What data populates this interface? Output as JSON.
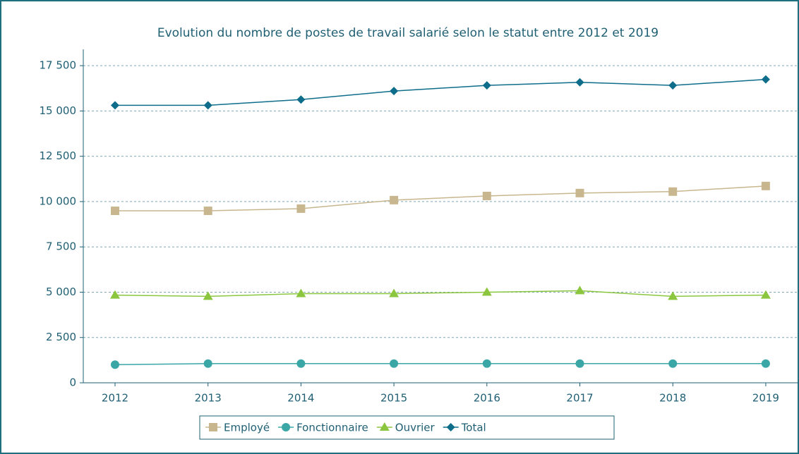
{
  "chart_data": {
    "type": "line",
    "title": "Evolution du nombre de postes de travail salarié selon le statut entre 2012 et 2019",
    "categories": [
      "2012",
      "2013",
      "2014",
      "2015",
      "2016",
      "2017",
      "2018",
      "2019"
    ],
    "series": [
      {
        "name": "Employé",
        "color": "#c8b68e",
        "marker": "square",
        "values": [
          9490,
          9490,
          9610,
          10080,
          10310,
          10470,
          10550,
          10860
        ]
      },
      {
        "name": "Fonctionnaire",
        "color": "#3aa6a6",
        "marker": "circle",
        "values": [
          1000,
          1060,
          1060,
          1060,
          1060,
          1060,
          1060,
          1060
        ]
      },
      {
        "name": "Ouvrier",
        "color": "#8cc63f",
        "marker": "triangle",
        "values": [
          4840,
          4770,
          4920,
          4920,
          5000,
          5080,
          4770,
          4840
        ]
      },
      {
        "name": "Total",
        "color": "#0e6d8a",
        "marker": "diamond",
        "values": [
          15310,
          15310,
          15630,
          16100,
          16410,
          16580,
          16410,
          16740
        ]
      }
    ],
    "ylim": [
      0,
      18400
    ],
    "yticks": [
      0,
      {
        "value": 2500,
        "label": "2 500"
      },
      {
        "value": 5000,
        "label": "5 000"
      },
      {
        "value": 7500,
        "label": "7 500"
      },
      {
        "value": 10000,
        "label": "10 000"
      },
      {
        "value": 12500,
        "label": "12 500"
      },
      {
        "value": 15000,
        "label": "15 000"
      },
      {
        "value": 17500,
        "label": "17 500"
      }
    ],
    "grid": true,
    "legend": "bottom"
  }
}
